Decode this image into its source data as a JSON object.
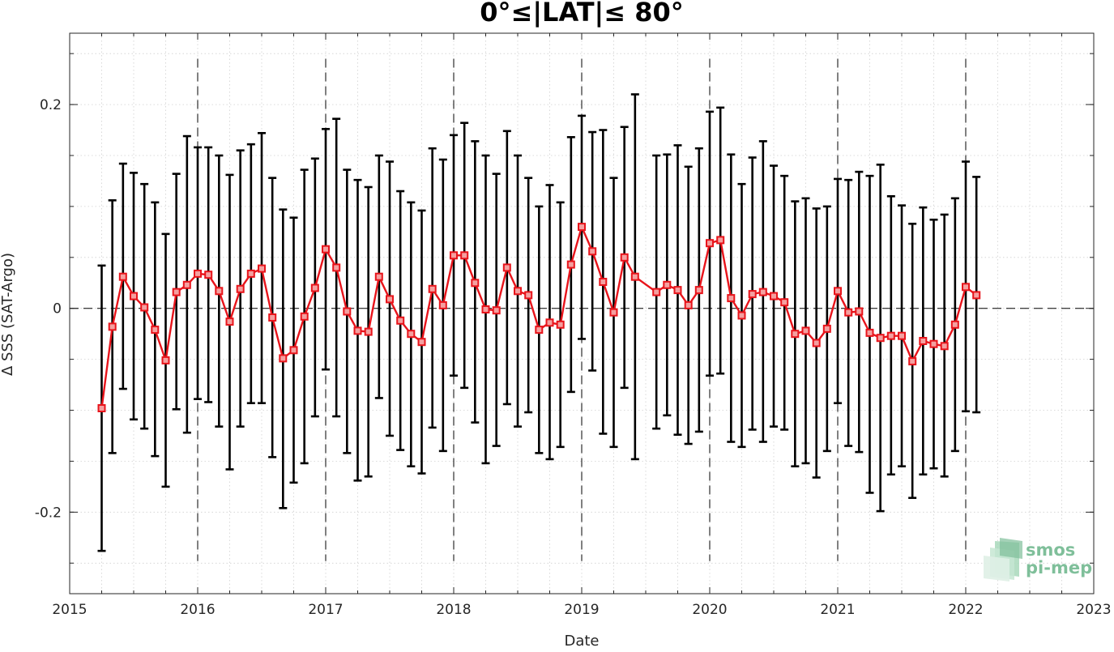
{
  "chart_data": {
    "type": "line",
    "title": "0°≤|LAT|≤ 80°",
    "xlabel": "Date",
    "ylabel": "Δ SSS (SAT-Argo)",
    "xlim": [
      2015,
      2023
    ],
    "ylim": [
      -0.28,
      0.27
    ],
    "x_tick_labels": [
      "2015",
      "2016",
      "2017",
      "2018",
      "2019",
      "2020",
      "2021",
      "2022",
      "2023"
    ],
    "y_tick_labels": [
      "0.2",
      "0",
      "-0.2"
    ],
    "grid": true,
    "dashed_year_lines": [
      "2016",
      "2017",
      "2018",
      "2019",
      "2020",
      "2021",
      "2022"
    ],
    "zero_line": "dashed",
    "series": [
      {
        "color": "#e8141b",
        "marker": "square",
        "points": [
          {
            "date": "2015-04",
            "mean": -0.098,
            "lower": -0.238,
            "upper": 0.042
          },
          {
            "date": "2015-05",
            "mean": -0.018,
            "lower": -0.142,
            "upper": 0.106
          },
          {
            "date": "2015-06",
            "mean": 0.031,
            "lower": -0.079,
            "upper": 0.142
          },
          {
            "date": "2015-07",
            "mean": 0.012,
            "lower": -0.109,
            "upper": 0.133
          },
          {
            "date": "2015-08",
            "mean": 0.001,
            "lower": -0.118,
            "upper": 0.122
          },
          {
            "date": "2015-09",
            "mean": -0.021,
            "lower": -0.145,
            "upper": 0.104
          },
          {
            "date": "2015-10",
            "mean": -0.051,
            "lower": -0.175,
            "upper": 0.073
          },
          {
            "date": "2015-11",
            "mean": 0.016,
            "lower": -0.099,
            "upper": 0.132
          },
          {
            "date": "2015-12",
            "mean": 0.023,
            "lower": -0.122,
            "upper": 0.169
          },
          {
            "date": "2016-01",
            "mean": 0.034,
            "lower": -0.089,
            "upper": 0.158
          },
          {
            "date": "2016-02",
            "mean": 0.033,
            "lower": -0.092,
            "upper": 0.158
          },
          {
            "date": "2016-03",
            "mean": 0.017,
            "lower": -0.116,
            "upper": 0.15
          },
          {
            "date": "2016-04",
            "mean": -0.013,
            "lower": -0.158,
            "upper": 0.131
          },
          {
            "date": "2016-05",
            "mean": 0.019,
            "lower": -0.116,
            "upper": 0.155
          },
          {
            "date": "2016-06",
            "mean": 0.034,
            "lower": -0.093,
            "upper": 0.161
          },
          {
            "date": "2016-07",
            "mean": 0.039,
            "lower": -0.093,
            "upper": 0.172
          },
          {
            "date": "2016-08",
            "mean": -0.009,
            "lower": -0.146,
            "upper": 0.128
          },
          {
            "date": "2016-09",
            "mean": -0.049,
            "lower": -0.196,
            "upper": 0.097
          },
          {
            "date": "2016-10",
            "mean": -0.041,
            "lower": -0.171,
            "upper": 0.089
          },
          {
            "date": "2016-11",
            "mean": -0.008,
            "lower": -0.152,
            "upper": 0.136
          },
          {
            "date": "2016-12",
            "mean": 0.02,
            "lower": -0.106,
            "upper": 0.147
          },
          {
            "date": "2017-01",
            "mean": 0.058,
            "lower": -0.06,
            "upper": 0.176
          },
          {
            "date": "2017-02",
            "mean": 0.04,
            "lower": -0.106,
            "upper": 0.186
          },
          {
            "date": "2017-03",
            "mean": -0.003,
            "lower": -0.142,
            "upper": 0.136
          },
          {
            "date": "2017-04",
            "mean": -0.022,
            "lower": -0.169,
            "upper": 0.126
          },
          {
            "date": "2017-05",
            "mean": -0.023,
            "lower": -0.165,
            "upper": 0.119
          },
          {
            "date": "2017-06",
            "mean": 0.031,
            "lower": -0.088,
            "upper": 0.15
          },
          {
            "date": "2017-07",
            "mean": 0.009,
            "lower": -0.125,
            "upper": 0.144
          },
          {
            "date": "2017-08",
            "mean": -0.012,
            "lower": -0.139,
            "upper": 0.115
          },
          {
            "date": "2017-09",
            "mean": -0.025,
            "lower": -0.155,
            "upper": 0.104
          },
          {
            "date": "2017-10",
            "mean": -0.033,
            "lower": -0.162,
            "upper": 0.096
          },
          {
            "date": "2017-11",
            "mean": 0.019,
            "lower": -0.117,
            "upper": 0.157
          },
          {
            "date": "2017-12",
            "mean": 0.003,
            "lower": -0.14,
            "upper": 0.146
          },
          {
            "date": "2018-01",
            "mean": 0.052,
            "lower": -0.066,
            "upper": 0.17
          },
          {
            "date": "2018-02",
            "mean": 0.052,
            "lower": -0.078,
            "upper": 0.182
          },
          {
            "date": "2018-03",
            "mean": 0.025,
            "lower": -0.112,
            "upper": 0.164
          },
          {
            "date": "2018-04",
            "mean": -0.001,
            "lower": -0.152,
            "upper": 0.15
          },
          {
            "date": "2018-05",
            "mean": -0.002,
            "lower": -0.135,
            "upper": 0.132
          },
          {
            "date": "2018-06",
            "mean": 0.04,
            "lower": -0.094,
            "upper": 0.174
          },
          {
            "date": "2018-07",
            "mean": 0.017,
            "lower": -0.116,
            "upper": 0.15
          },
          {
            "date": "2018-08",
            "mean": 0.013,
            "lower": -0.102,
            "upper": 0.128
          },
          {
            "date": "2018-09",
            "mean": -0.021,
            "lower": -0.142,
            "upper": 0.1
          },
          {
            "date": "2018-10",
            "mean": -0.014,
            "lower": -0.148,
            "upper": 0.121
          },
          {
            "date": "2018-11",
            "mean": -0.016,
            "lower": -0.136,
            "upper": 0.104
          },
          {
            "date": "2018-12",
            "mean": 0.043,
            "lower": -0.082,
            "upper": 0.168
          },
          {
            "date": "2019-01",
            "mean": 0.08,
            "lower": -0.03,
            "upper": 0.189
          },
          {
            "date": "2019-02",
            "mean": 0.056,
            "lower": -0.061,
            "upper": 0.173
          },
          {
            "date": "2019-03",
            "mean": 0.026,
            "lower": -0.123,
            "upper": 0.175
          },
          {
            "date": "2019-04",
            "mean": -0.004,
            "lower": -0.136,
            "upper": 0.128
          },
          {
            "date": "2019-05",
            "mean": 0.05,
            "lower": -0.078,
            "upper": 0.178
          },
          {
            "date": "2019-06",
            "mean": 0.031,
            "lower": -0.148,
            "upper": 0.21
          },
          {
            "date": "2019-08",
            "mean": 0.016,
            "lower": -0.118,
            "upper": 0.15
          },
          {
            "date": "2019-09",
            "mean": 0.023,
            "lower": -0.105,
            "upper": 0.151
          },
          {
            "date": "2019-10",
            "mean": 0.018,
            "lower": -0.124,
            "upper": 0.16
          },
          {
            "date": "2019-11",
            "mean": 0.003,
            "lower": -0.133,
            "upper": 0.139
          },
          {
            "date": "2019-12",
            "mean": 0.018,
            "lower": -0.121,
            "upper": 0.157
          },
          {
            "date": "2020-01",
            "mean": 0.064,
            "lower": -0.066,
            "upper": 0.193
          },
          {
            "date": "2020-02",
            "mean": 0.067,
            "lower": -0.064,
            "upper": 0.197
          },
          {
            "date": "2020-03",
            "mean": 0.01,
            "lower": -0.131,
            "upper": 0.151
          },
          {
            "date": "2020-04",
            "mean": -0.007,
            "lower": -0.136,
            "upper": 0.122
          },
          {
            "date": "2020-05",
            "mean": 0.014,
            "lower": -0.119,
            "upper": 0.148
          },
          {
            "date": "2020-06",
            "mean": 0.016,
            "lower": -0.131,
            "upper": 0.164
          },
          {
            "date": "2020-07",
            "mean": 0.012,
            "lower": -0.116,
            "upper": 0.14
          },
          {
            "date": "2020-08",
            "mean": 0.006,
            "lower": -0.119,
            "upper": 0.13
          },
          {
            "date": "2020-09",
            "mean": -0.025,
            "lower": -0.155,
            "upper": 0.105
          },
          {
            "date": "2020-10",
            "mean": -0.022,
            "lower": -0.152,
            "upper": 0.108
          },
          {
            "date": "2020-11",
            "mean": -0.034,
            "lower": -0.166,
            "upper": 0.098
          },
          {
            "date": "2020-12",
            "mean": -0.02,
            "lower": -0.14,
            "upper": 0.1
          },
          {
            "date": "2021-01",
            "mean": 0.017,
            "lower": -0.093,
            "upper": 0.127
          },
          {
            "date": "2021-02",
            "mean": -0.004,
            "lower": -0.135,
            "upper": 0.126
          },
          {
            "date": "2021-03",
            "mean": -0.003,
            "lower": -0.141,
            "upper": 0.134
          },
          {
            "date": "2021-04",
            "mean": -0.024,
            "lower": -0.181,
            "upper": 0.13
          },
          {
            "date": "2021-05",
            "mean": -0.029,
            "lower": -0.199,
            "upper": 0.141
          },
          {
            "date": "2021-06",
            "mean": -0.027,
            "lower": -0.163,
            "upper": 0.11
          },
          {
            "date": "2021-07",
            "mean": -0.027,
            "lower": -0.155,
            "upper": 0.101
          },
          {
            "date": "2021-08",
            "mean": -0.052,
            "lower": -0.186,
            "upper": 0.083
          },
          {
            "date": "2021-09",
            "mean": -0.032,
            "lower": -0.163,
            "upper": 0.099
          },
          {
            "date": "2021-10",
            "mean": -0.035,
            "lower": -0.157,
            "upper": 0.087
          },
          {
            "date": "2021-11",
            "mean": -0.037,
            "lower": -0.165,
            "upper": 0.092
          },
          {
            "date": "2021-12",
            "mean": -0.016,
            "lower": -0.14,
            "upper": 0.108
          },
          {
            "date": "2022-01",
            "mean": 0.021,
            "lower": -0.101,
            "upper": 0.144
          },
          {
            "date": "2022-02",
            "mean": 0.013,
            "lower": -0.102,
            "upper": 0.129
          }
        ]
      }
    ]
  },
  "logo": {
    "line1": "smos",
    "line2": "pi-mep"
  },
  "colors": {
    "series": "#e8141b",
    "errorbar": "#000000",
    "logo": "#7fbf9a"
  }
}
